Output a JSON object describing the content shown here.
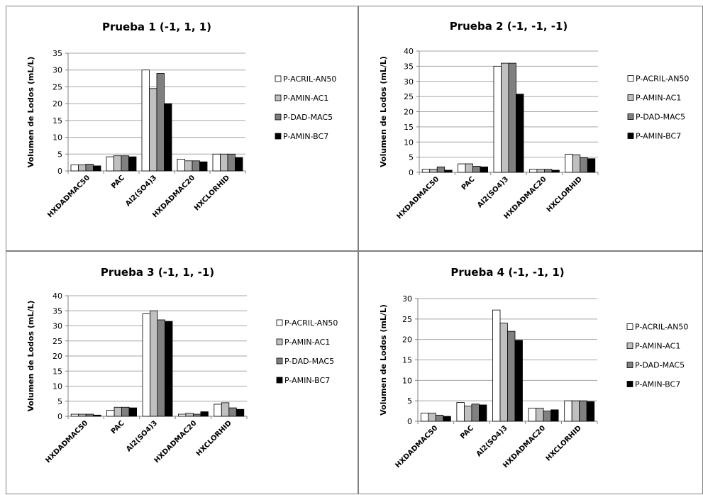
{
  "chart_data": [
    {
      "type": "bar",
      "title": "Prueba 1 (-1, 1, 1)",
      "ylabel": "Volumen de Lodos  (mL/L)",
      "ylim": [
        0,
        35
      ],
      "yticks": [
        0,
        5,
        10,
        15,
        20,
        25,
        30,
        35
      ],
      "grid": true,
      "legend": "right",
      "categories": [
        "HXDADMAC50",
        "PAC",
        "Al2(SO4)3",
        "HXDADMAC20",
        "HXCLORHID"
      ],
      "series": [
        {
          "name": "P-ACRIL-AN50",
          "color": "#ffffff",
          "values": [
            1.8,
            4.2,
            30,
            3.5,
            5
          ]
        },
        {
          "name": "P-AMIN-AC1",
          "color": "#c0c0c0",
          "values": [
            1.8,
            4.5,
            24.5,
            3.0,
            5
          ]
        },
        {
          "name": "P-DAD-MAC5",
          "color": "#808080",
          "values": [
            2.0,
            4.5,
            29,
            3.0,
            5
          ]
        },
        {
          "name": "P-AMIN-BC7",
          "color": "#000000",
          "values": [
            1.5,
            4.2,
            20,
            2.7,
            4
          ]
        }
      ]
    },
    {
      "type": "bar",
      "title": "Prueba 2 (-1, -1, -1)",
      "ylabel": "Volumen de Lodos  (mL/L)",
      "ylim": [
        0,
        40
      ],
      "yticks": [
        0,
        5,
        10,
        15,
        20,
        25,
        30,
        35,
        40
      ],
      "grid": true,
      "legend": "right",
      "categories": [
        "HXDADMAC50",
        "PAC",
        "Al2(SO4)3",
        "HXDADMAC20",
        "HXCLORHID"
      ],
      "series": [
        {
          "name": "P-ACRIL-AN50",
          "color": "#ffffff",
          "values": [
            1.0,
            2.8,
            35,
            1.0,
            6
          ]
        },
        {
          "name": "P-AMIN-AC1",
          "color": "#c0c0c0",
          "values": [
            1.0,
            2.8,
            36,
            1.0,
            5.8
          ]
        },
        {
          "name": "P-DAD-MAC5",
          "color": "#808080",
          "values": [
            1.8,
            2.0,
            36,
            1.0,
            4.8
          ]
        },
        {
          "name": "P-AMIN-BC7",
          "color": "#000000",
          "values": [
            0.7,
            1.8,
            25.8,
            0.7,
            4.5
          ]
        }
      ]
    },
    {
      "type": "bar",
      "title": "Prueba 3 (-1, 1, -1)",
      "ylabel": "Volumen de Lodos  (mL/L)",
      "ylim": [
        0,
        40
      ],
      "yticks": [
        0,
        5,
        10,
        15,
        20,
        25,
        30,
        35,
        40
      ],
      "grid": true,
      "legend": "right",
      "categories": [
        "HXDADMAC50",
        "PAC",
        "Al2(SO4)3",
        "HXDADMAC20",
        "HXCLORHID"
      ],
      "series": [
        {
          "name": "P-ACRIL-AN50",
          "color": "#ffffff",
          "values": [
            0.7,
            2.0,
            34,
            0.7,
            4
          ]
        },
        {
          "name": "P-AMIN-AC1",
          "color": "#c0c0c0",
          "values": [
            0.7,
            3.0,
            35,
            1.0,
            4.5
          ]
        },
        {
          "name": "P-DAD-MAC5",
          "color": "#808080",
          "values": [
            0.7,
            3.0,
            32,
            0.7,
            2.8
          ]
        },
        {
          "name": "P-AMIN-BC7",
          "color": "#000000",
          "values": [
            0.4,
            2.8,
            31.5,
            1.5,
            2.3
          ]
        }
      ]
    },
    {
      "type": "bar",
      "title": "Prueba 4 (-1, -1, 1)",
      "ylabel": "Volumen de Lodos  (mL/L)",
      "ylim": [
        0,
        30
      ],
      "yticks": [
        0,
        5,
        10,
        15,
        20,
        25,
        30
      ],
      "grid": true,
      "legend": "right",
      "categories": [
        "HXDADMAC50",
        "PAC",
        "Al2(SO4)3",
        "HXDADMAC20",
        "HXCLORHID"
      ],
      "series": [
        {
          "name": "P-ACRIL-AN50",
          "color": "#ffffff",
          "values": [
            2.0,
            4.6,
            27.2,
            3.2,
            5
          ]
        },
        {
          "name": "P-AMIN-AC1",
          "color": "#c0c0c0",
          "values": [
            2.0,
            3.7,
            24,
            3.2,
            5
          ]
        },
        {
          "name": "P-DAD-MAC5",
          "color": "#808080",
          "values": [
            1.5,
            4.2,
            22,
            2.5,
            5
          ]
        },
        {
          "name": "P-AMIN-BC7",
          "color": "#000000",
          "values": [
            1.2,
            4.0,
            19.8,
            2.8,
            4.8
          ]
        }
      ]
    }
  ]
}
